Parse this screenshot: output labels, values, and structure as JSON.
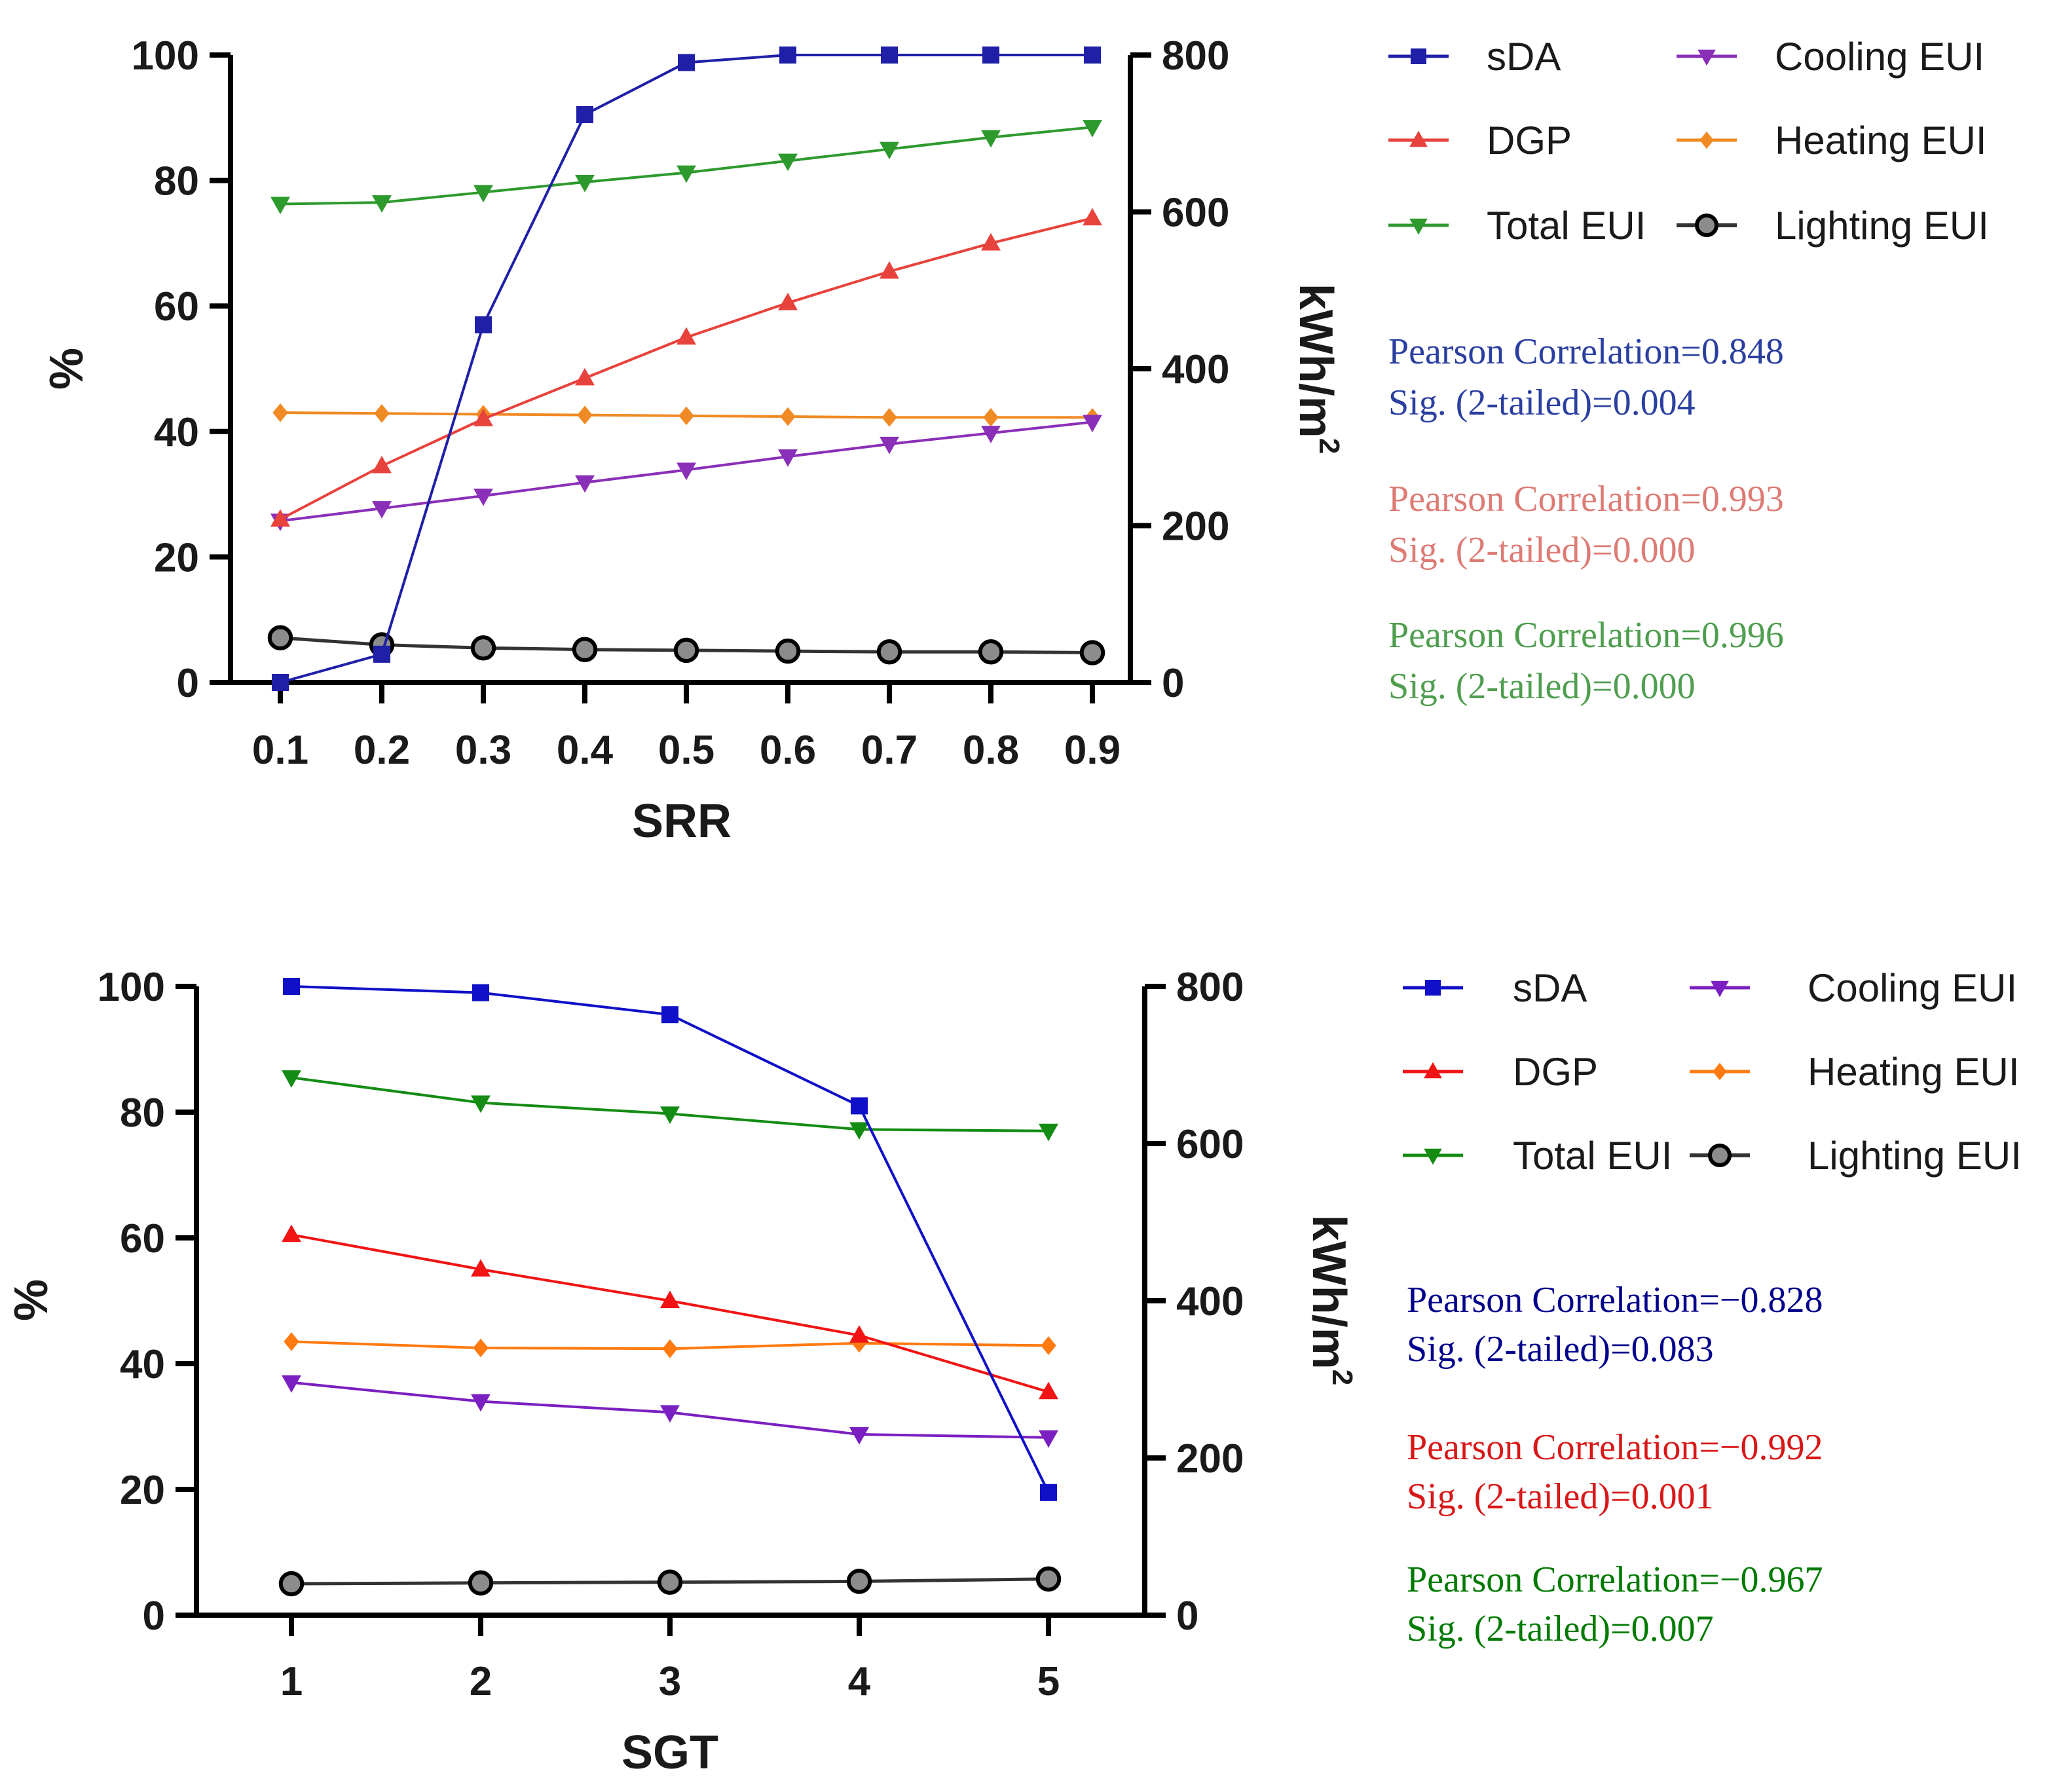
{
  "chart_data": [
    {
      "type": "line",
      "id": "srr",
      "xlabel": "SRR",
      "ylabel_left": "%",
      "ylabel_right": "kWh/m",
      "ylabel_right_sup": "2",
      "x": [
        0.1,
        0.2,
        0.3,
        0.4,
        0.5,
        0.6,
        0.7,
        0.8,
        0.9
      ],
      "x_tick_labels": [
        "0.1",
        "0.2",
        "0.3",
        "0.4",
        "0.5",
        "0.6",
        "0.7",
        "0.8",
        "0.9"
      ],
      "ylim_left": [
        0,
        100
      ],
      "ylim_right": [
        0,
        800
      ],
      "yticks_left": [
        "0",
        "20",
        "40",
        "60",
        "80",
        "100"
      ],
      "yticks_right": [
        "0",
        "200",
        "400",
        "600",
        "800"
      ],
      "series": [
        {
          "key": "sda",
          "name": "sDA",
          "axis": "left",
          "color": "#1f1fa8",
          "marker": "square",
          "values": [
            0,
            4.5,
            57,
            90.5,
            98.8,
            100,
            100,
            100,
            100
          ]
        },
        {
          "key": "dgp",
          "name": "DGP",
          "axis": "left",
          "color": "#e8423c",
          "marker": "triangle-up",
          "values": [
            26,
            34.5,
            42,
            48.5,
            55,
            60.5,
            65.5,
            70,
            74
          ]
        },
        {
          "key": "total",
          "name": "Total EUI",
          "axis": "right",
          "color": "#2e9a2e",
          "marker": "triangle-down",
          "values": [
            610,
            612,
            625,
            638,
            650,
            665,
            680,
            695,
            708
          ]
        },
        {
          "key": "cooling",
          "name": "Cooling EUI",
          "axis": "right",
          "color": "#8a2fb8",
          "marker": "triangle-down",
          "values": [
            206,
            222,
            238,
            255,
            271,
            288,
            304,
            318,
            332
          ]
        },
        {
          "key": "heating",
          "name": "Heating EUI",
          "axis": "right",
          "color": "#f08a24",
          "marker": "diamond",
          "values": [
            344,
            343,
            342,
            341,
            340,
            339,
            338,
            338,
            338
          ]
        },
        {
          "key": "lighting",
          "name": "Lighting EUI",
          "axis": "right",
          "color": "#333333",
          "marker": "circle",
          "values": [
            57,
            48,
            44,
            42,
            41,
            40,
            39,
            39,
            38
          ]
        }
      ],
      "legend_layout": [
        [
          "sda",
          "cooling"
        ],
        [
          "dgp",
          "heating"
        ],
        [
          "total",
          "lighting"
        ]
      ],
      "stats": [
        {
          "line1": "Pearson Correlation=0.848",
          "line2": "Sig. (2-tailed)=0.004",
          "color": "#2a3fa0"
        },
        {
          "line1": "Pearson Correlation=0.993",
          "line2": "Sig. (2-tailed)=0.000",
          "color": "#dd7b75"
        },
        {
          "line1": "Pearson Correlation=0.996",
          "line2": "Sig. (2-tailed)=0.000",
          "color": "#4f9e4f"
        }
      ]
    },
    {
      "type": "line",
      "id": "sgt",
      "xlabel": "SGT",
      "ylabel_left": "%",
      "ylabel_right": "kWh/m",
      "ylabel_right_sup": "2",
      "x": [
        1,
        2,
        3,
        4,
        5
      ],
      "x_tick_labels": [
        "1",
        "2",
        "3",
        "4",
        "5"
      ],
      "ylim_left": [
        0,
        100
      ],
      "ylim_right": [
        0,
        800
      ],
      "yticks_left": [
        "0",
        "20",
        "40",
        "60",
        "80",
        "100"
      ],
      "yticks_right": [
        "0",
        "200",
        "400",
        "600",
        "800"
      ],
      "series": [
        {
          "key": "sda",
          "name": "sDA",
          "axis": "left",
          "color": "#1010c8",
          "marker": "square",
          "values": [
            100,
            99,
            95.5,
            81,
            19.5
          ]
        },
        {
          "key": "dgp",
          "name": "DGP",
          "axis": "left",
          "color": "#f01414",
          "marker": "triangle-up",
          "values": [
            60.5,
            55,
            50,
            44.5,
            35.5
          ]
        },
        {
          "key": "total",
          "name": "Total EUI",
          "axis": "right",
          "color": "#148c14",
          "marker": "triangle-down",
          "values": [
            684,
            652,
            638,
            618,
            616
          ]
        },
        {
          "key": "cooling",
          "name": "Cooling EUI",
          "axis": "right",
          "color": "#7a1fc0",
          "marker": "triangle-down",
          "values": [
            296,
            272,
            258,
            230,
            226
          ]
        },
        {
          "key": "heating",
          "name": "Heating EUI",
          "axis": "right",
          "color": "#ff7a10",
          "marker": "diamond",
          "values": [
            348,
            340,
            339,
            346,
            343
          ]
        },
        {
          "key": "lighting",
          "name": "Lighting EUI",
          "axis": "right",
          "color": "#333333",
          "marker": "circle",
          "values": [
            40,
            41,
            42,
            43,
            46
          ]
        }
      ],
      "legend_layout": [
        [
          "sda",
          "cooling"
        ],
        [
          "dgp",
          "heating"
        ],
        [
          "total",
          "lighting"
        ]
      ],
      "stats": [
        {
          "line1": "Pearson Correlation=−0.828",
          "line2": "Sig. (2-tailed)=0.083",
          "color": "#00008b"
        },
        {
          "line1": "Pearson Correlation=−0.992",
          "line2": "Sig. (2-tailed)=0.001",
          "color": "#d81818"
        },
        {
          "line1": "Pearson Correlation=−0.967",
          "line2": "Sig. (2-tailed)=0.007",
          "color": "#007a00"
        }
      ]
    }
  ]
}
